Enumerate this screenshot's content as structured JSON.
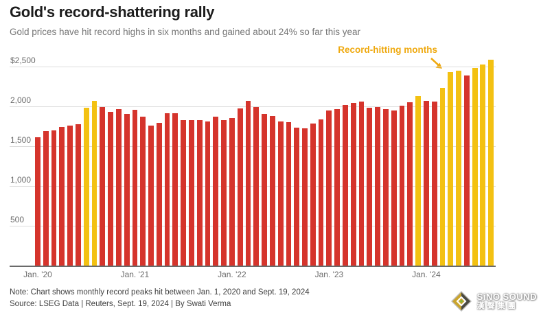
{
  "header": {
    "title": "Gold's record-shattering rally",
    "subtitle": "Gold prices have hit record highs in six months and gained about 24% so far this year"
  },
  "annotation": {
    "label": "Record-hitting months"
  },
  "colors": {
    "regular_bar": "#d5342c",
    "record_bar": "#f3c112",
    "annotation_text": "#efa90f",
    "gridline": "#dcdcdc"
  },
  "chart_data": {
    "type": "bar",
    "title": "Gold's record-shattering rally",
    "subtitle": "Gold prices have hit record highs in six months and gained about 24% so far this year",
    "legend": {
      "record_label": "Record-hitting months"
    },
    "grid": true,
    "ylim": [
      0,
      2600
    ],
    "y_axis": {
      "ticks": [
        {
          "value": 2500,
          "label": "$2,500"
        },
        {
          "value": 2000,
          "label": "2,000"
        },
        {
          "value": 1500,
          "label": "1,500"
        },
        {
          "value": 1000,
          "label": "1,000"
        },
        {
          "value": 500,
          "label": "500"
        }
      ]
    },
    "x_axis": {
      "ticks": [
        {
          "bar_index": 0,
          "label": "Jan. '20"
        },
        {
          "bar_index": 12,
          "label": "Jan. '21"
        },
        {
          "bar_index": 24,
          "label": "Jan. '22"
        },
        {
          "bar_index": 36,
          "label": "Jan. '23"
        },
        {
          "bar_index": 48,
          "label": "Jan. '24"
        }
      ]
    },
    "series": [
      {
        "month": "Jan 2020",
        "value": 1610,
        "record": false
      },
      {
        "month": "Feb 2020",
        "value": 1689,
        "record": false
      },
      {
        "month": "Mar 2020",
        "value": 1703,
        "record": false
      },
      {
        "month": "Apr 2020",
        "value": 1747,
        "record": false
      },
      {
        "month": "May 2020",
        "value": 1765,
        "record": false
      },
      {
        "month": "Jun 2020",
        "value": 1779,
        "record": false
      },
      {
        "month": "Jul 2020",
        "value": 1981,
        "record": true
      },
      {
        "month": "Aug 2020",
        "value": 2075,
        "record": true
      },
      {
        "month": "Sep 2020",
        "value": 1992,
        "record": false
      },
      {
        "month": "Oct 2020",
        "value": 1933,
        "record": false
      },
      {
        "month": "Nov 2020",
        "value": 1965,
        "record": false
      },
      {
        "month": "Dec 2020",
        "value": 1906,
        "record": false
      },
      {
        "month": "Jan 2021",
        "value": 1959,
        "record": false
      },
      {
        "month": "Feb 2021",
        "value": 1871,
        "record": false
      },
      {
        "month": "Mar 2021",
        "value": 1760,
        "record": false
      },
      {
        "month": "Apr 2021",
        "value": 1798,
        "record": false
      },
      {
        "month": "May 2021",
        "value": 1912,
        "record": false
      },
      {
        "month": "Jun 2021",
        "value": 1916,
        "record": false
      },
      {
        "month": "Jul 2021",
        "value": 1834,
        "record": false
      },
      {
        "month": "Aug 2021",
        "value": 1831,
        "record": false
      },
      {
        "month": "Sep 2021",
        "value": 1834,
        "record": false
      },
      {
        "month": "Oct 2021",
        "value": 1813,
        "record": false
      },
      {
        "month": "Nov 2021",
        "value": 1877,
        "record": false
      },
      {
        "month": "Dec 2021",
        "value": 1830,
        "record": false
      },
      {
        "month": "Jan 2022",
        "value": 1853,
        "record": false
      },
      {
        "month": "Feb 2022",
        "value": 1974,
        "record": false
      },
      {
        "month": "Mar 2022",
        "value": 2070,
        "record": false
      },
      {
        "month": "Apr 2022",
        "value": 1998,
        "record": false
      },
      {
        "month": "May 2022",
        "value": 1910,
        "record": false
      },
      {
        "month": "Jun 2022",
        "value": 1879,
        "record": false
      },
      {
        "month": "Jul 2022",
        "value": 1814,
        "record": false
      },
      {
        "month": "Aug 2022",
        "value": 1807,
        "record": false
      },
      {
        "month": "Sep 2022",
        "value": 1735,
        "record": false
      },
      {
        "month": "Oct 2022",
        "value": 1730,
        "record": false
      },
      {
        "month": "Nov 2022",
        "value": 1786,
        "record": false
      },
      {
        "month": "Dec 2022",
        "value": 1840,
        "record": false
      },
      {
        "month": "Jan 2023",
        "value": 1955,
        "record": false
      },
      {
        "month": "Feb 2023",
        "value": 1969,
        "record": false
      },
      {
        "month": "Mar 2023",
        "value": 2017,
        "record": false
      },
      {
        "month": "Apr 2023",
        "value": 2048,
        "record": false
      },
      {
        "month": "May 2023",
        "value": 2067,
        "record": false
      },
      {
        "month": "Jun 2023",
        "value": 1983,
        "record": false
      },
      {
        "month": "Jul 2023",
        "value": 1990,
        "record": false
      },
      {
        "month": "Aug 2023",
        "value": 1972,
        "record": false
      },
      {
        "month": "Sep 2023",
        "value": 1953,
        "record": false
      },
      {
        "month": "Oct 2023",
        "value": 2009,
        "record": false
      },
      {
        "month": "Nov 2023",
        "value": 2052,
        "record": false
      },
      {
        "month": "Dec 2023",
        "value": 2135,
        "record": true
      },
      {
        "month": "Jan 2024",
        "value": 2070,
        "record": false
      },
      {
        "month": "Feb 2024",
        "value": 2060,
        "record": false
      },
      {
        "month": "Mar 2024",
        "value": 2236,
        "record": true
      },
      {
        "month": "Apr 2024",
        "value": 2431,
        "record": true
      },
      {
        "month": "May 2024",
        "value": 2450,
        "record": true
      },
      {
        "month": "Jun 2024",
        "value": 2387,
        "record": false
      },
      {
        "month": "Jul 2024",
        "value": 2483,
        "record": true
      },
      {
        "month": "Aug 2024",
        "value": 2531,
        "record": true
      },
      {
        "month": "Sep 2024",
        "value": 2589,
        "record": true
      }
    ]
  },
  "footer": {
    "note": "Note: Chart shows monthly record peaks hit between Jan. 1, 2020 and Sept. 19, 2024",
    "source": "Source: LSEG Data | Reuters, Sept. 19, 2024 | By Swati Verma"
  },
  "logo": {
    "name": "SiNO SOUND",
    "chinese": "漢聲集團"
  }
}
